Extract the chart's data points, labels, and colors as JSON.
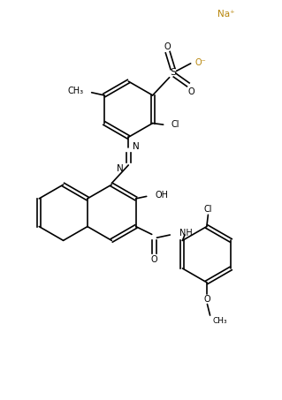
{
  "background_color": "#ffffff",
  "line_color": "#000000",
  "figsize": [
    3.19,
    4.53
  ],
  "dpi": 100,
  "lw": 1.2,
  "fs_label": 7.0,
  "fs_na": 7.5,
  "na_text": "Na⁺",
  "cl_top": "Cl",
  "cl_bot": "Cl",
  "methyl_top": "CH₃",
  "oh": "OH",
  "nh": "NH",
  "o_carbonyl": "O",
  "s_label": "S",
  "o_top": "O",
  "o_minus": "O⁻",
  "o_br": "O"
}
